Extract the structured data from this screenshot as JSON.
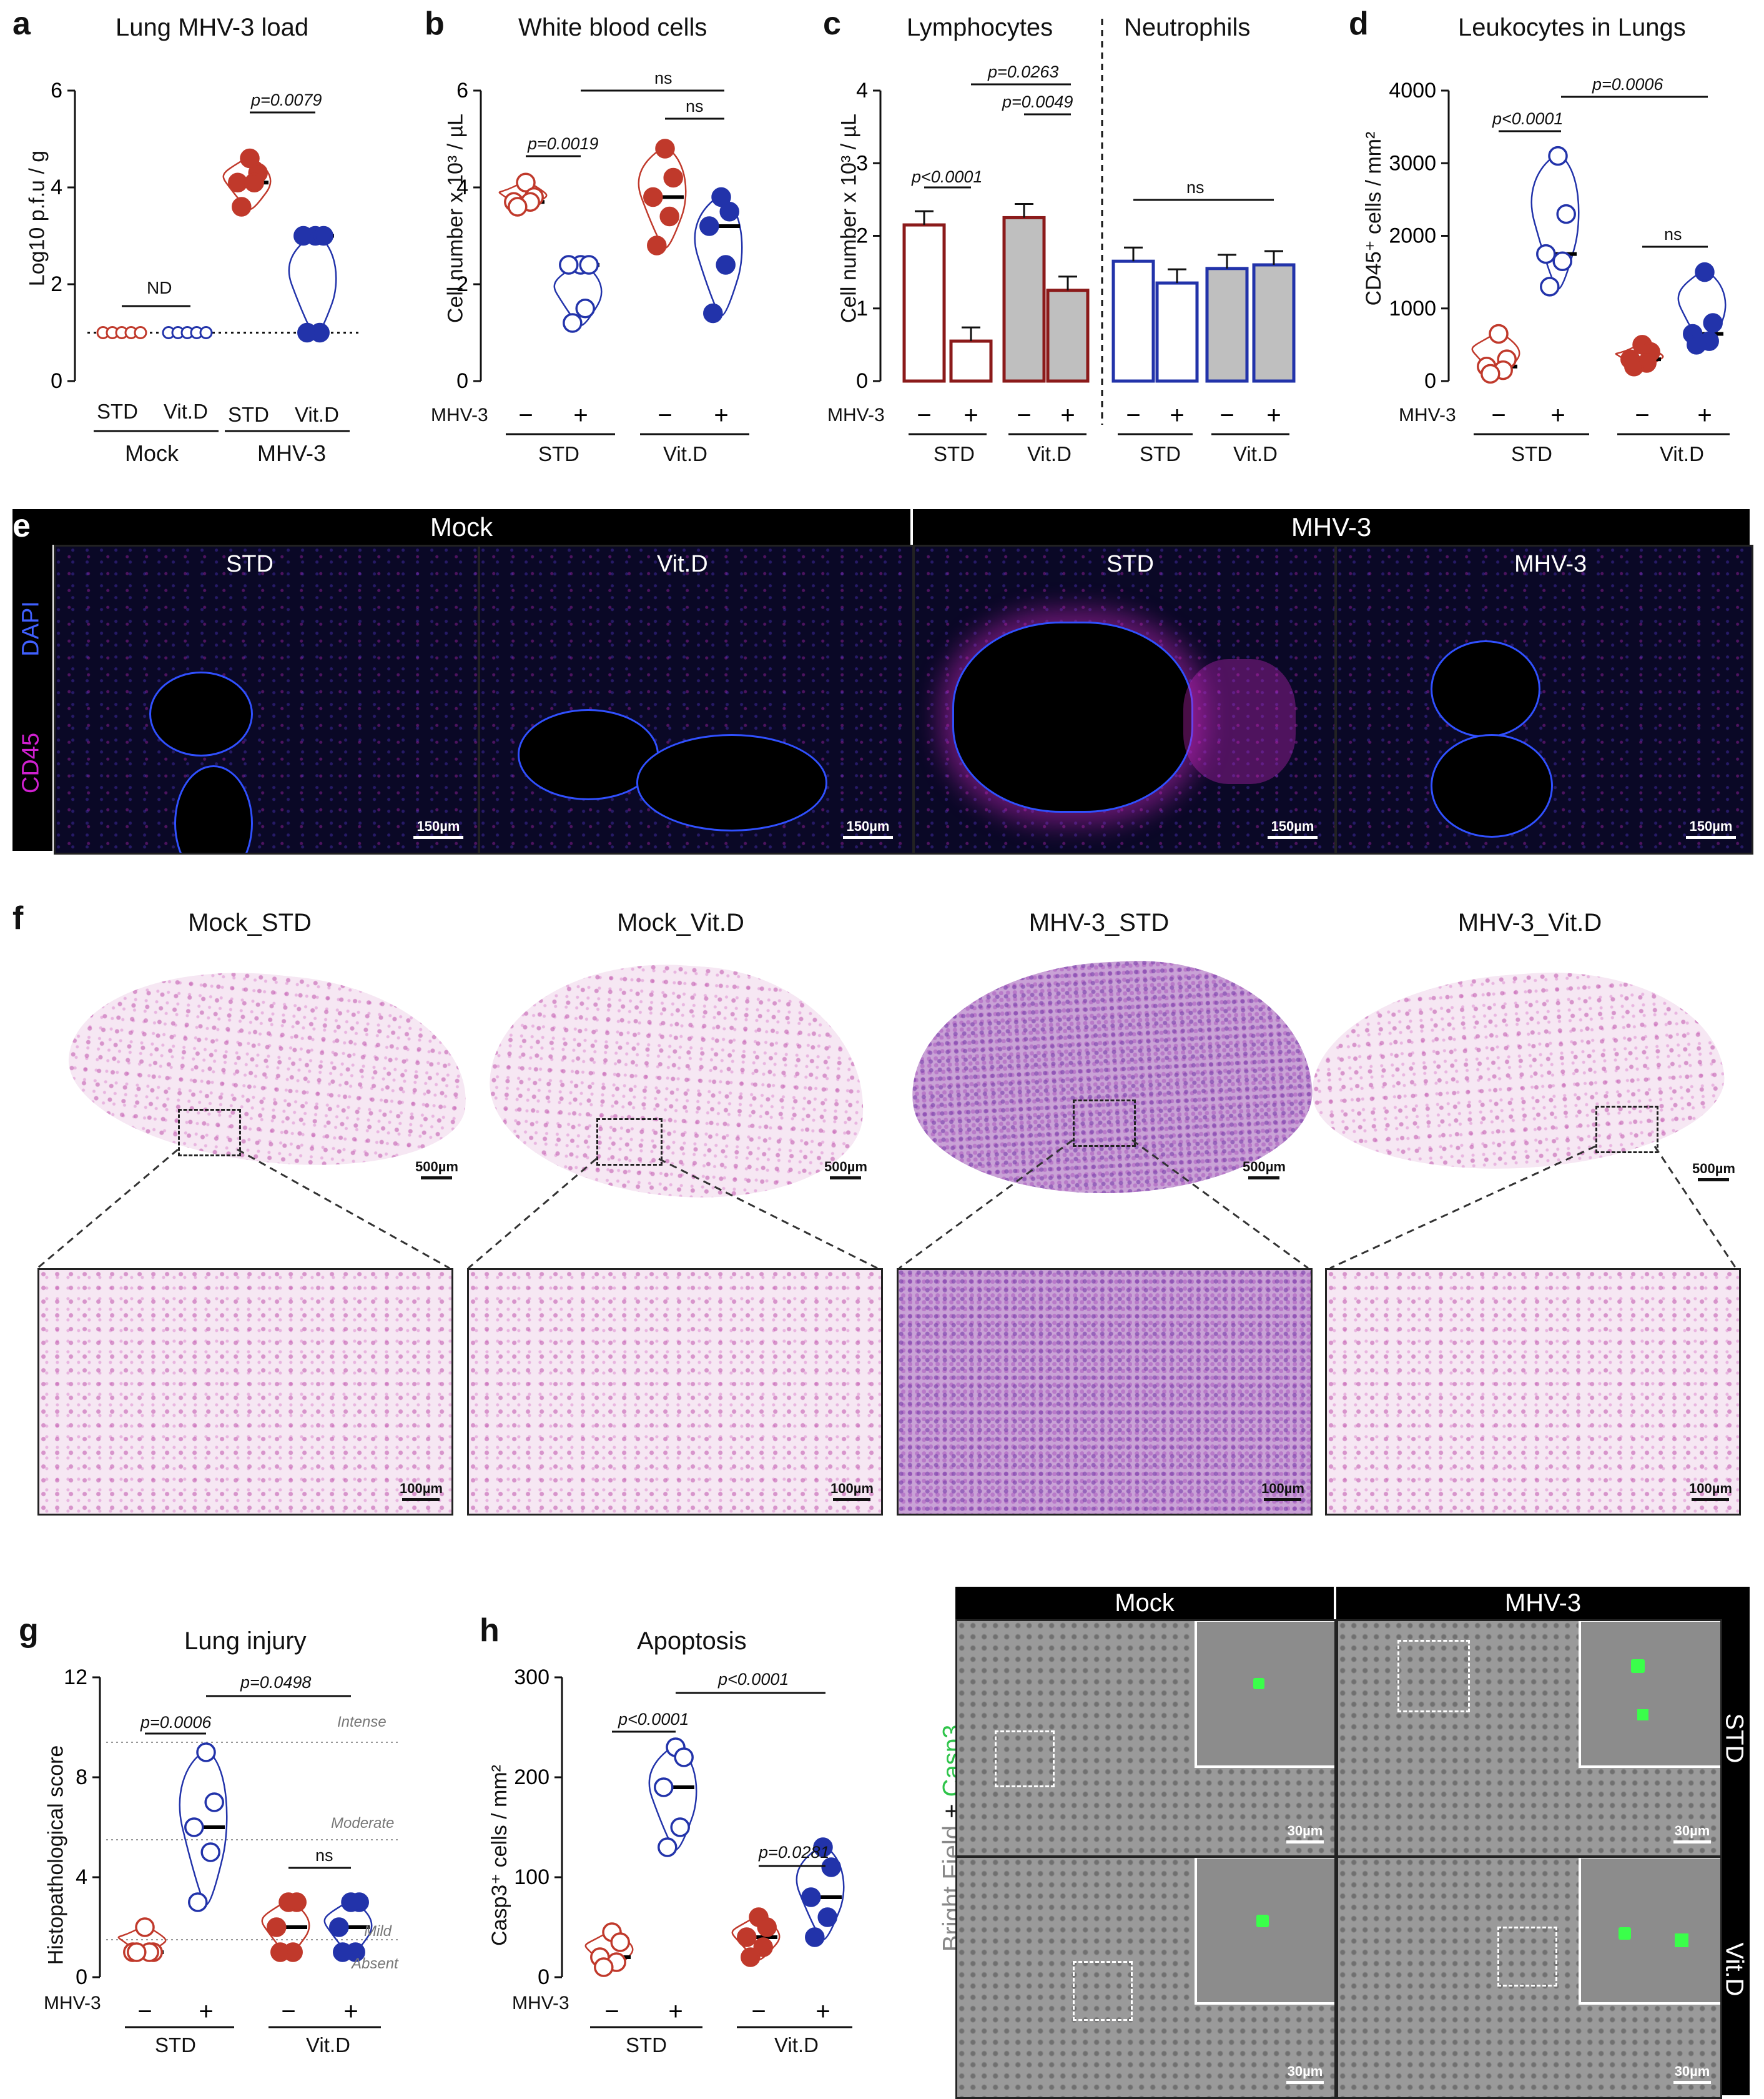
{
  "colors": {
    "red": "#c0392b",
    "blue": "#2233aa",
    "darkred": "#8b1a1a",
    "grey": "#bfbfbf"
  },
  "panels": {
    "a": {
      "letter": "a",
      "title": "Lung MHV-3 load",
      "ylabel": "Log10 p.f.u / g",
      "yticks": [
        "0",
        "2",
        "4",
        "6"
      ],
      "xlabels": [
        "STD",
        "Vit.D",
        "STD",
        "Vit.D"
      ],
      "groups": [
        "Mock",
        "MHV-3"
      ],
      "nd": "ND",
      "pval": "p=0.0079"
    },
    "b": {
      "letter": "b",
      "title": "White blood cells",
      "ylabel": "Cell number x 10³ / µL",
      "yticks": [
        "0",
        "2",
        "4",
        "6"
      ],
      "mhv": "MHV-3",
      "minus": "−",
      "plus": "+",
      "groups": [
        "STD",
        "Vit.D"
      ],
      "p1": "p=0.0019",
      "ns1": "ns",
      "ns2": "ns"
    },
    "c": {
      "letter": "c",
      "title1": "Lymphocytes",
      "title2": "Neutrophils",
      "ylabel": "Cell number x 10³ / µL",
      "yticks": [
        "0",
        "1",
        "2",
        "3",
        "4"
      ],
      "mhv": "MHV-3",
      "groups": [
        "STD",
        "Vit.D",
        "STD",
        "Vit.D"
      ],
      "p1": "p<0.0001",
      "p2": "p=0.0263",
      "p3": "p=0.0049",
      "ns": "ns"
    },
    "d": {
      "letter": "d",
      "title": "Leukocytes in Lungs",
      "ylabel": "CD45⁺ cells / mm²",
      "yticks": [
        "0",
        "1000",
        "2000",
        "3000",
        "4000"
      ],
      "mhv": "MHV-3",
      "groups": [
        "STD",
        "Vit.D"
      ],
      "p1": "p<0.0001",
      "p2": "p=0.0006",
      "ns": "ns"
    },
    "e": {
      "letter": "e",
      "headers": [
        "Mock",
        "MHV-3"
      ],
      "sub": [
        "STD",
        "Vit.D",
        "STD",
        "MHV-3"
      ],
      "stain1": "DAPI",
      "stain2": "CD45",
      "scale": "150µm"
    },
    "f": {
      "letter": "f",
      "titles": [
        "Mock_STD",
        "Mock_Vit.D",
        "MHV-3_STD",
        "MHV-3_Vit.D"
      ],
      "scale_big": "500µm",
      "scale_small": "100µm"
    },
    "g": {
      "letter": "g",
      "title": "Lung injury",
      "ylabel": "Histopathological score",
      "yticks": [
        "0",
        "4",
        "8",
        "12"
      ],
      "levels": [
        "Intense",
        "Moderate",
        "Mild",
        "Absent"
      ],
      "mhv": "MHV-3",
      "groups": [
        "STD",
        "Vit.D"
      ],
      "p1": "p=0.0006",
      "p2": "p=0.0498",
      "ns": "ns"
    },
    "h": {
      "letter": "h",
      "title": "Apoptosis",
      "ylabel": "Casp3⁺ cells / mm²",
      "yticks": [
        "0",
        "100",
        "200",
        "300"
      ],
      "mhv": "MHV-3",
      "groups": [
        "STD",
        "Vit.D"
      ],
      "p1": "p<0.0001",
      "p2": "p<0.0001",
      "p3": "p=0.0281"
    },
    "i": {
      "headers": [
        "Mock",
        "MHV-3"
      ],
      "rows": [
        "STD",
        "Vit.D"
      ],
      "side1": "Bright Field",
      "side2": " + ",
      "side3": "Casp3",
      "scale": "30µm"
    }
  },
  "chart_data": [
    {
      "type": "scatter",
      "panel": "a",
      "title": "Lung MHV-3 load",
      "ylabel": "Log10 p.f.u / g",
      "ylim": [
        0,
        6
      ],
      "categories": [
        "Mock STD",
        "Mock Vit.D",
        "MHV-3 STD",
        "MHV-3 Vit.D"
      ],
      "series": [
        {
          "values": [
            [
              1,
              1,
              1,
              1,
              1
            ],
            [
              1,
              1,
              1,
              1,
              1
            ],
            [
              4.6,
              4.3,
              4.1,
              4.1,
              3.6
            ],
            [
              3.0,
              3.0,
              3.0,
              1.0,
              1.0
            ]
          ]
        }
      ]
    },
    {
      "type": "scatter",
      "panel": "b",
      "title": "White blood cells",
      "ylabel": "Cell number x 10³ / µL",
      "ylim": [
        0,
        6
      ],
      "categories": [
        "STD −",
        "STD +",
        "Vit.D −",
        "Vit.D +"
      ],
      "series": [
        {
          "values": [
            [
              4.1,
              3.8,
              3.7,
              3.7,
              3.6
            ],
            [
              2.4,
              2.4,
              2.4,
              1.5,
              1.2
            ],
            [
              4.8,
              4.2,
              3.8,
              3.4,
              2.8
            ],
            [
              3.8,
              3.5,
              3.2,
              2.4,
              1.4
            ]
          ]
        }
      ]
    },
    {
      "type": "bar",
      "panel": "c",
      "title": "Lymphocytes / Neutrophils",
      "ylabel": "Cell number x 10³ / µL",
      "ylim": [
        0,
        4
      ],
      "categories": [
        "Lym STD −",
        "Lym STD +",
        "Lym Vit.D −",
        "Lym Vit.D +",
        "Neu STD −",
        "Neu STD +",
        "Neu Vit.D −",
        "Neu Vit.D +"
      ],
      "values": [
        2.15,
        0.55,
        2.25,
        1.25,
        1.65,
        1.35,
        1.55,
        1.6
      ]
    },
    {
      "type": "scatter",
      "panel": "d",
      "title": "Leukocytes in Lungs",
      "ylabel": "CD45⁺ cells / mm²",
      "ylim": [
        0,
        4000
      ],
      "categories": [
        "STD −",
        "STD +",
        "Vit.D −",
        "Vit.D +"
      ],
      "series": [
        {
          "values": [
            [
              650,
              300,
              200,
              150,
              100
            ],
            [
              3100,
              2300,
              1750,
              1650,
              1300
            ],
            [
              500,
              400,
              300,
              250,
              200
            ],
            [
              1500,
              800,
              650,
              550,
              500
            ]
          ]
        }
      ]
    },
    {
      "type": "scatter",
      "panel": "g",
      "title": "Lung injury",
      "ylabel": "Histopathological score",
      "ylim": [
        0,
        12
      ],
      "categories": [
        "STD −",
        "STD +",
        "Vit.D −",
        "Vit.D +"
      ],
      "series": [
        {
          "values": [
            [
              2,
              1,
              1,
              1,
              1
            ],
            [
              9,
              7,
              6,
              5,
              3
            ],
            [
              3,
              3,
              2,
              1,
              1
            ],
            [
              3,
              3,
              2,
              1,
              1
            ]
          ]
        }
      ]
    },
    {
      "type": "scatter",
      "panel": "h",
      "title": "Apoptosis",
      "ylabel": "Casp3⁺ cells / mm²",
      "ylim": [
        0,
        300
      ],
      "categories": [
        "STD −",
        "STD +",
        "Vit.D −",
        "Vit.D +"
      ],
      "series": [
        {
          "values": [
            [
              45,
              35,
              20,
              15,
              10
            ],
            [
              230,
              220,
              190,
              150,
              130
            ],
            [
              60,
              50,
              40,
              30,
              20
            ],
            [
              130,
              110,
              80,
              60,
              40
            ]
          ]
        }
      ]
    }
  ]
}
